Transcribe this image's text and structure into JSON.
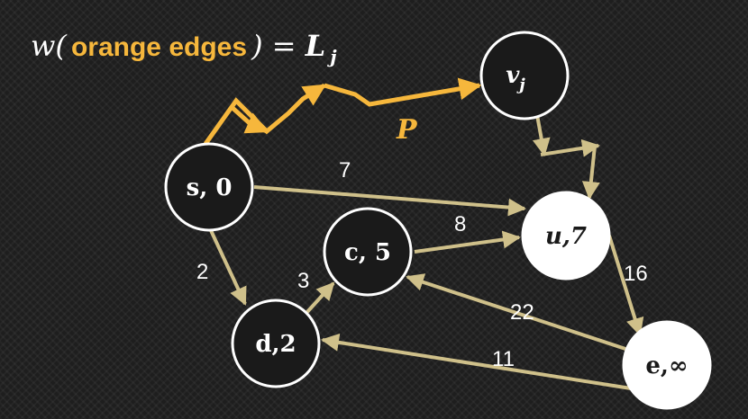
{
  "title": {
    "prefix": "w(",
    "highlight": "orange edges",
    "suffix": ") = ",
    "result": "L",
    "result_sub": "j"
  },
  "path_label": "P",
  "colors": {
    "background": "#1e1e1e",
    "orange": "#f6b73c",
    "edge": "#cfc08a",
    "node_dark": "#1a1a1a",
    "node_light": "#ffffff"
  },
  "nodes": [
    {
      "id": "s",
      "label": "s, 0",
      "fill": "dark"
    },
    {
      "id": "d",
      "label": "d,2",
      "fill": "dark"
    },
    {
      "id": "c",
      "label": "c, 5",
      "fill": "dark"
    },
    {
      "id": "u",
      "label": "u,7",
      "fill": "light"
    },
    {
      "id": "e",
      "label": "e,∞",
      "fill": "light"
    },
    {
      "id": "v",
      "label": "v",
      "label_sub": "j",
      "fill": "dark"
    }
  ],
  "edges": [
    {
      "from": "s",
      "to": "u",
      "weight": "7"
    },
    {
      "from": "s",
      "to": "d",
      "weight": "2"
    },
    {
      "from": "d",
      "to": "c",
      "weight": "3"
    },
    {
      "from": "c",
      "to": "u",
      "weight": "8"
    },
    {
      "from": "u",
      "to": "e",
      "weight": "16"
    },
    {
      "from": "e",
      "to": "c",
      "weight": "22"
    },
    {
      "from": "e",
      "to": "d",
      "weight": "11"
    }
  ]
}
